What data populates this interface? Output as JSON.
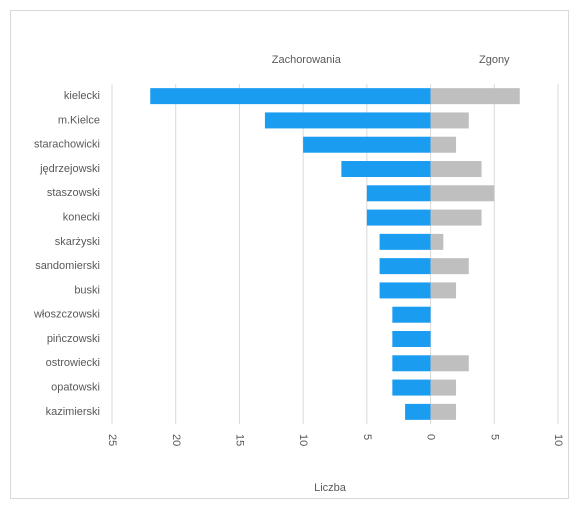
{
  "chart_data": {
    "type": "butterfly-bar",
    "x_label": "Liczba",
    "categories": [
      "kielecki",
      "m.Kielce",
      "starachowicki",
      "jędrzejowski",
      "staszowski",
      "konecki",
      "skarżyski",
      "sandomierski",
      "buski",
      "włoszczowski",
      "pińczowski",
      "ostrowiecki",
      "opatowski",
      "kazimierski"
    ],
    "series": [
      {
        "name": "Zachorowania",
        "color": "#1a9cf0",
        "values": [
          -22,
          -13,
          -10,
          -7,
          -5,
          -5,
          -4,
          -4,
          -4,
          -3,
          -3,
          -3,
          -3,
          -2
        ]
      },
      {
        "name": "Zgony",
        "color": "#bfbfbf",
        "values": [
          7,
          3,
          2,
          4,
          5,
          4,
          1,
          3,
          2,
          0,
          0,
          3,
          2,
          2
        ]
      }
    ],
    "xlim": [
      -25,
      10
    ],
    "xticks": [
      {
        "value": -25,
        "label": "25"
      },
      {
        "value": -20,
        "label": "20"
      },
      {
        "value": -15,
        "label": "15"
      },
      {
        "value": -10,
        "label": "10"
      },
      {
        "value": -5,
        "label": "5"
      },
      0,
      5,
      10
    ],
    "grid": true
  }
}
